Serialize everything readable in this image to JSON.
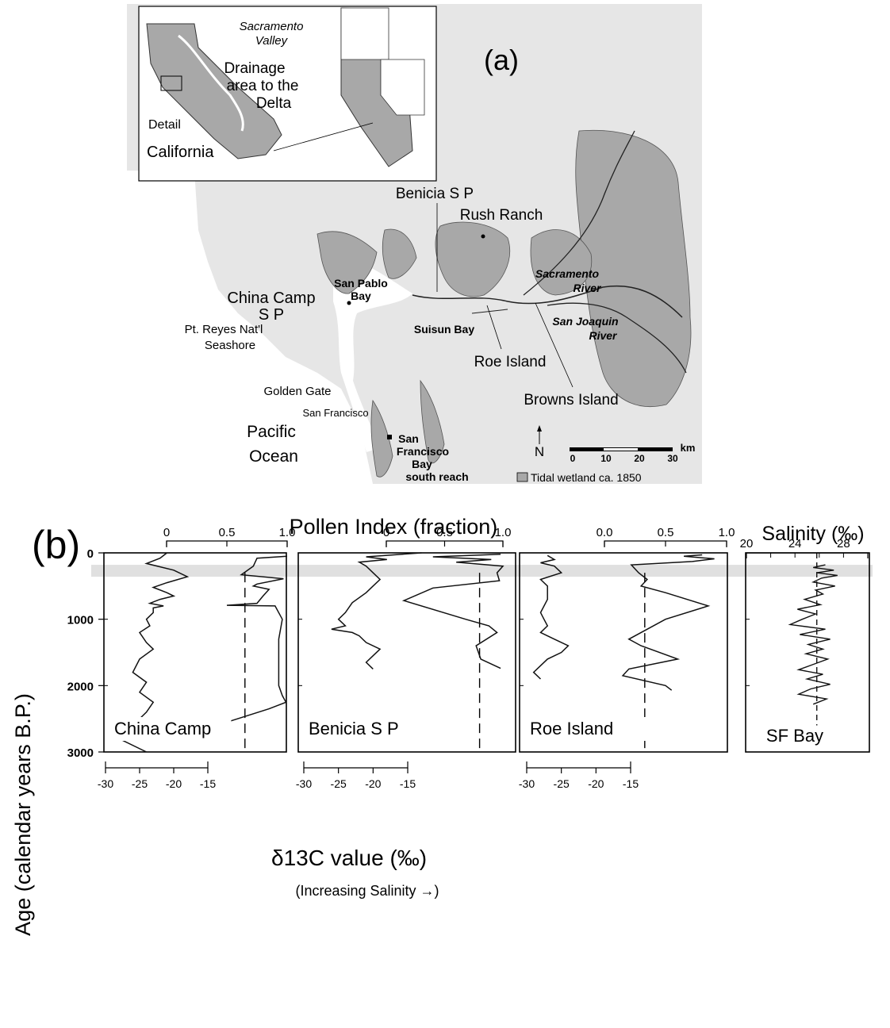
{
  "map": {
    "panel_label": "(a)",
    "inset_labels": [
      "Sacramento",
      "Valley",
      "Drainage",
      "area to the",
      "Delta",
      "Detail",
      "California"
    ],
    "place_labels": [
      "Benicia S P",
      "Rush Ranch",
      "China Camp",
      "S P",
      "San Pablo",
      "Bay",
      "Suisun Bay",
      "Sacramento",
      "River",
      "San Joaquin",
      "River",
      "Pt. Reyes Nat'l",
      "Seashore",
      "Roe Island",
      "Browns Island",
      "Golden Gate",
      "San Francisco",
      "Pacific",
      "Ocean",
      "San",
      "Francisco",
      "Bay",
      "south reach"
    ],
    "north_label": "N",
    "scale_unit": "km",
    "scale_ticks": [
      "0",
      "10",
      "20",
      "30"
    ],
    "legend_text": "Tidal wetland ca. 1850",
    "colors": {
      "wetland": "#a8a8a8",
      "water": "#ffffff",
      "land": "#e6e6e6"
    }
  },
  "chart_data": {
    "type": "line",
    "panel_label": "(b)",
    "title": "Pollen Index (fraction)",
    "ylabel": "Age (calendar years B.P.)",
    "ylim": [
      3000,
      0
    ],
    "y_ticks": [
      "0",
      "1000",
      "2000",
      "3000"
    ],
    "xlabel_bottom": "δ13C value (‰)",
    "xlabel_bottom_note": "(Increasing Salinity →)",
    "shaded_band": [
      180,
      360
    ],
    "panels": [
      {
        "name": "China Camp",
        "pollen_ticks": [
          "0",
          "0.5",
          "1.0"
        ],
        "pollen_range": [
          0,
          1
        ],
        "d13c_ticks": [
          "-30",
          "-25",
          "-20",
          "-15"
        ],
        "d13c_range": [
          -30,
          -15
        ],
        "pollen_dashed": 0.65,
        "d13c_series": [
          [
            0,
            -21
          ],
          [
            80,
            -22
          ],
          [
            160,
            -24
          ],
          [
            260,
            -20
          ],
          [
            360,
            -18
          ],
          [
            450,
            -21
          ],
          [
            520,
            -23
          ],
          [
            600,
            -21
          ],
          [
            650,
            -20
          ],
          [
            700,
            -22
          ],
          [
            760,
            -23.5
          ],
          [
            800,
            -21.5
          ],
          [
            830,
            -23
          ],
          [
            900,
            -23
          ],
          [
            1000,
            -24
          ],
          [
            1100,
            -23.5
          ],
          [
            1200,
            -25
          ],
          [
            1350,
            -24
          ],
          [
            1450,
            -23
          ],
          [
            1600,
            -25
          ],
          [
            1800,
            -26
          ],
          [
            1950,
            -24
          ],
          [
            2100,
            -25
          ],
          [
            2250,
            -23
          ],
          [
            2400,
            -24
          ],
          [
            2600,
            -26
          ],
          [
            2800,
            -28
          ],
          [
            3000,
            -24
          ]
        ],
        "pollen_series": [
          [
            50,
            1.0
          ],
          [
            80,
            0.75
          ],
          [
            200,
            0.72
          ],
          [
            330,
            0.62
          ],
          [
            390,
            0.97
          ],
          [
            470,
            0.75
          ],
          [
            500,
            0.72
          ],
          [
            550,
            0.85
          ],
          [
            650,
            0.8
          ],
          [
            760,
            0.75
          ],
          [
            790,
            0.5
          ],
          [
            800,
            0.9
          ],
          [
            1000,
            0.96
          ],
          [
            1300,
            0.93
          ],
          [
            1700,
            0.93
          ],
          [
            2000,
            0.93
          ],
          [
            2150,
            0.96
          ],
          [
            2250,
            0.99
          ],
          [
            2350,
            0.85
          ],
          [
            2550,
            0.5
          ],
          [
            2650,
            0.35
          ],
          [
            2700,
            0.3
          ]
        ]
      },
      {
        "name": "Benicia S P",
        "pollen_ticks": [
          "0",
          "0.5",
          "1.0"
        ],
        "pollen_range": [
          0,
          1
        ],
        "d13c_ticks": [
          "-30",
          "-25",
          "-20",
          "-15"
        ],
        "d13c_range": [
          -30,
          -15
        ],
        "pollen_dashed": 0.8,
        "d13c_series": [
          [
            0,
            -13
          ],
          [
            60,
            -21
          ],
          [
            100,
            -18
          ],
          [
            140,
            -22
          ],
          [
            200,
            -21
          ],
          [
            300,
            -20
          ],
          [
            400,
            -19
          ],
          [
            500,
            -20
          ],
          [
            600,
            -21
          ],
          [
            750,
            -23
          ],
          [
            900,
            -24
          ],
          [
            1000,
            -25
          ],
          [
            1100,
            -24
          ],
          [
            1150,
            -26
          ],
          [
            1200,
            -23
          ],
          [
            1250,
            -22
          ],
          [
            1350,
            -21
          ],
          [
            1450,
            -19
          ],
          [
            1550,
            -20
          ],
          [
            1650,
            -21
          ],
          [
            1750,
            -20
          ]
        ],
        "pollen_series": [
          [
            20,
            0.98
          ],
          [
            60,
            0.4
          ],
          [
            100,
            0.9
          ],
          [
            140,
            0.6
          ],
          [
            200,
            1.0
          ],
          [
            300,
            0.95
          ],
          [
            420,
            0.97
          ],
          [
            530,
            0.4
          ],
          [
            720,
            0.15
          ],
          [
            1000,
            0.68
          ],
          [
            1100,
            0.88
          ],
          [
            1200,
            0.95
          ],
          [
            1400,
            0.77
          ],
          [
            1600,
            0.81
          ],
          [
            1740,
            0.98
          ]
        ]
      },
      {
        "name": "Roe Island",
        "pollen_ticks": [
          "0.0",
          "0.5",
          "1.0"
        ],
        "pollen_range": [
          0,
          1
        ],
        "d13c_ticks": [
          "-30",
          "-25",
          "-20",
          "-15"
        ],
        "d13c_range": [
          -30,
          -15
        ],
        "pollen_dashed": 0.33,
        "d13c_series": [
          [
            40,
            -27
          ],
          [
            100,
            -26
          ],
          [
            150,
            -28
          ],
          [
            200,
            -26
          ],
          [
            300,
            -25
          ],
          [
            400,
            -28
          ],
          [
            500,
            -27
          ],
          [
            700,
            -27
          ],
          [
            900,
            -28
          ],
          [
            1000,
            -27.5
          ],
          [
            1100,
            -27
          ],
          [
            1200,
            -28
          ],
          [
            1300,
            -26
          ],
          [
            1400,
            -24
          ],
          [
            1500,
            -25
          ],
          [
            1600,
            -27
          ],
          [
            1700,
            -28
          ],
          [
            1800,
            -29
          ],
          [
            1900,
            -28
          ]
        ],
        "pollen_series": [
          [
            30,
            0.8
          ],
          [
            50,
            0.65
          ],
          [
            90,
            0.9
          ],
          [
            130,
            0.72
          ],
          [
            180,
            0.22
          ],
          [
            300,
            0.28
          ],
          [
            400,
            0.35
          ],
          [
            500,
            0.3
          ],
          [
            600,
            0.5
          ],
          [
            800,
            0.85
          ],
          [
            1000,
            0.5
          ],
          [
            1300,
            0.2
          ],
          [
            1400,
            0.3
          ],
          [
            1600,
            0.6
          ],
          [
            1750,
            0.2
          ],
          [
            1850,
            0.15
          ],
          [
            2000,
            0.5
          ],
          [
            2070,
            0.55
          ]
        ]
      }
    ],
    "salinity_panel": {
      "name": "SF Bay",
      "xlabel": "Salinity (‰)",
      "ticks": [
        "20",
        "24",
        "28"
      ],
      "range": [
        20,
        30
      ],
      "dashed": 25.8,
      "series": [
        [
          180,
          26.5
        ],
        [
          220,
          25.5
        ],
        [
          260,
          27.2
        ],
        [
          300,
          25.8
        ],
        [
          340,
          27.5
        ],
        [
          380,
          26.2
        ],
        [
          440,
          25.5
        ],
        [
          500,
          27.3
        ],
        [
          560,
          25.7
        ],
        [
          620,
          26.3
        ],
        [
          700,
          24.8
        ],
        [
          780,
          26.1
        ],
        [
          850,
          24.2
        ],
        [
          920,
          25.7
        ],
        [
          1000,
          24.6
        ],
        [
          1080,
          23.6
        ],
        [
          1150,
          26.5
        ],
        [
          1230,
          24.4
        ],
        [
          1300,
          26.9
        ],
        [
          1380,
          25.1
        ],
        [
          1450,
          26.3
        ],
        [
          1520,
          24.9
        ],
        [
          1600,
          26.7
        ],
        [
          1680,
          25.5
        ],
        [
          1760,
          24.3
        ],
        [
          1830,
          26.3
        ],
        [
          1900,
          25.0
        ],
        [
          1980,
          26.9
        ],
        [
          2050,
          25.3
        ],
        [
          2130,
          24.3
        ],
        [
          2200,
          26.6
        ],
        [
          2280,
          25.5
        ]
      ]
    }
  }
}
